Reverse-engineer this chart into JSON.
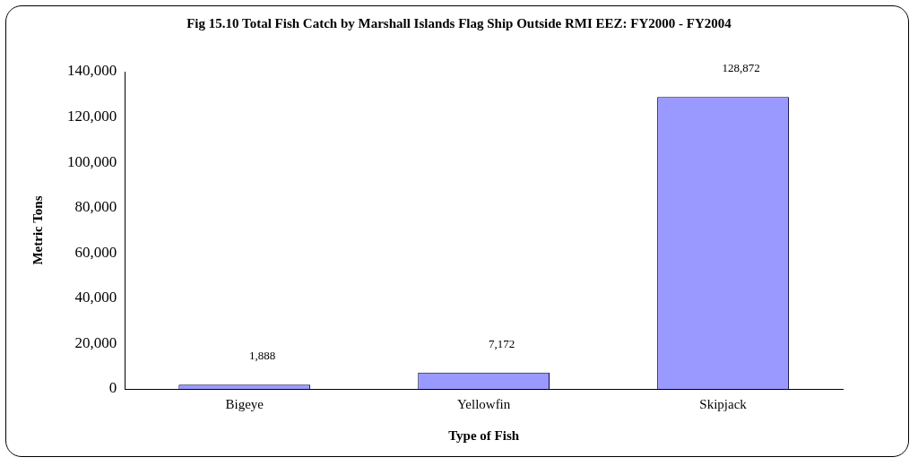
{
  "chart_data": {
    "type": "bar",
    "title": "Fig 15.10 Total Fish Catch by Marshall Islands Flag Ship Outside RMI EEZ: FY2000 - FY2004",
    "xlabel": "Type of Fish",
    "ylabel": "Metric Tons",
    "categories": [
      "Bigeye",
      "Yellowfin",
      "Skipjack"
    ],
    "values": [
      1888,
      7172,
      128872
    ],
    "value_labels": [
      "1,888",
      "7,172",
      "128,872"
    ],
    "color": "#9999ff",
    "ylim": [
      0,
      140000
    ],
    "yticks": [
      0,
      {
        "value": 20000,
        "label": "20,000"
      },
      {
        "value": 40000,
        "label": "40,000"
      },
      {
        "value": 60000,
        "label": "60,000"
      },
      {
        "value": 80000,
        "label": "80,000"
      },
      {
        "value": 100000,
        "label": "100,000"
      },
      {
        "value": 120000,
        "label": "120,000"
      },
      {
        "value": 140000,
        "label": "140,000"
      }
    ],
    "grid": false,
    "legend": false
  }
}
